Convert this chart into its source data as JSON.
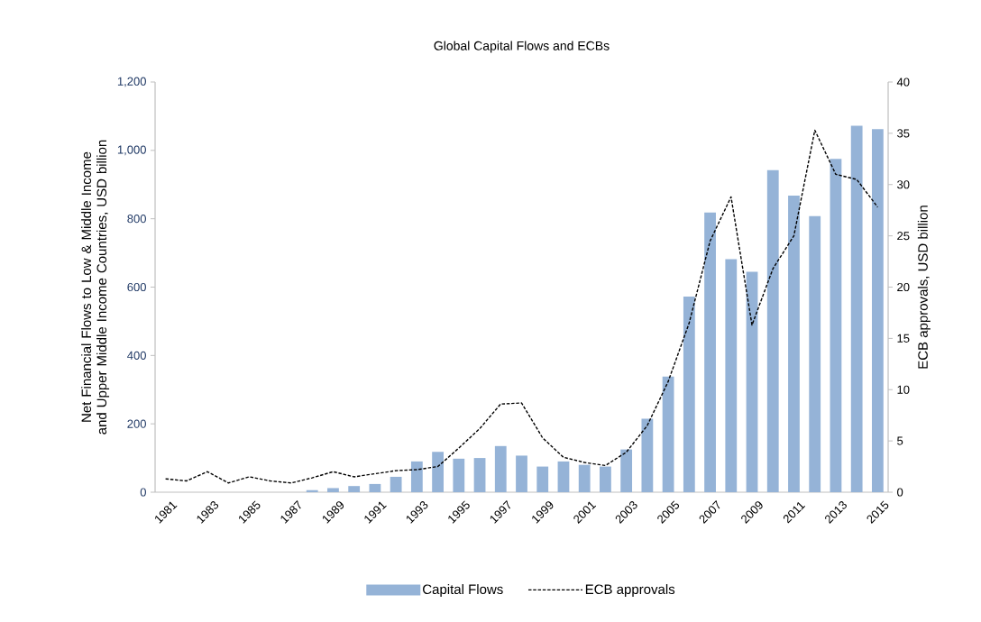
{
  "chart_data": {
    "type": "bar",
    "title": "Global Capital Flows and ECBs",
    "ylabel": "Net Financial Flows to Low & Middle Income and Upper Middle Income Countries, USD billion",
    "y2label": "ECB approvals, USD billion",
    "categories": [
      "1981",
      null,
      "1983",
      null,
      "1985",
      null,
      "1987",
      null,
      "1989",
      null,
      "1991",
      null,
      "1993",
      null,
      "1995",
      null,
      "1997",
      null,
      "1999",
      null,
      "2001",
      null,
      "2003",
      null,
      "2005",
      null,
      "2007",
      null,
      "2009",
      null,
      "2011",
      null,
      "2013",
      null,
      "2015"
    ],
    "ylim": [
      0,
      1200
    ],
    "yticks": [
      0,
      200,
      400,
      600,
      800,
      {
        "value": 1000,
        "label": "1,000"
      },
      {
        "value": 1200,
        "label": "1,200"
      }
    ],
    "y2lim": [
      0,
      40
    ],
    "y2ticks": [
      0,
      5,
      10,
      15,
      20,
      25,
      30,
      35,
      40
    ],
    "legend": "bottom",
    "series": [
      {
        "name": "Capital Flows",
        "color": "#95b3d7",
        "values": [
          null,
          null,
          null,
          null,
          null,
          null,
          null,
          6,
          12,
          18,
          24,
          45,
          90,
          118,
          98,
          100,
          135,
          107,
          75,
          90,
          80,
          75,
          125,
          215,
          338,
          572,
          818,
          682,
          645,
          942,
          868,
          808,
          975,
          1072,
          1062
        ]
      },
      {
        "name": "ECB approvals",
        "type": "line",
        "axis": "y2",
        "color": "#000000",
        "line_style": "dashed",
        "marker": "none",
        "values": [
          1.3,
          1.1,
          2.0,
          0.9,
          1.5,
          1.1,
          0.9,
          1.4,
          2.0,
          1.5,
          1.8,
          2.1,
          2.2,
          2.5,
          4.3,
          6.2,
          8.6,
          8.7,
          5.3,
          3.4,
          2.9,
          2.6,
          3.9,
          6.5,
          10.8,
          16.5,
          24.5,
          28.8,
          16.3,
          21.8,
          25.0,
          35.3,
          31.0,
          30.5,
          27.8
        ]
      }
    ]
  }
}
